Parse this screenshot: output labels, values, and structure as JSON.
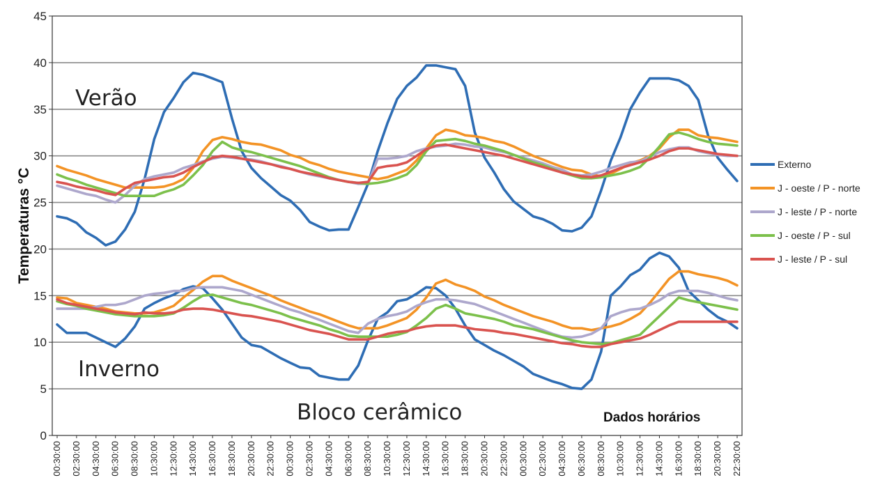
{
  "chart_data": {
    "type": "line",
    "title": "",
    "ylabel": "Temperaturas °C",
    "xlabel": "",
    "ylim": [
      0,
      45
    ],
    "yticks": [
      0,
      5,
      10,
      15,
      20,
      25,
      30,
      35,
      40,
      45
    ],
    "grid": true,
    "legend_position": "right",
    "x_ticks": [
      "00:30:00",
      "02:30:00",
      "04:30:00",
      "06:30:00",
      "08:30:00",
      "10:30:00",
      "12:30:00",
      "14:30:00",
      "16:30:00",
      "18:30:00",
      "20:30:00",
      "22:30:00",
      "00:30:00",
      "02:30:00",
      "04:30:00",
      "06:30:00",
      "08:30:00",
      "10:30:00",
      "12:30:00",
      "14:30:00",
      "16:30:00",
      "18:30:00",
      "20:30:00",
      "22:30:00",
      "00:30:00",
      "02:30:00",
      "04:30:00",
      "06:30:00",
      "08:30:00",
      "10:30:00",
      "12:30:00",
      "14:30:00",
      "16:30:00",
      "18:30:00",
      "20:30:00",
      "22:30:00"
    ],
    "annotations": {
      "verao": "Verão",
      "inverno": "Inverno",
      "bloco": "Bloco cerâmico",
      "dados": "Dados horários"
    },
    "series": [
      {
        "name": "Externo",
        "color": "#2E6DB4",
        "values": [
          23.5,
          23.3,
          22.8,
          21.8,
          21.2,
          20.4,
          20.8,
          22.1,
          24.0,
          27.5,
          31.8,
          34.7,
          36.2,
          37.9,
          38.9,
          38.7,
          38.3,
          37.9,
          34.0,
          30.5,
          28.7,
          27.6,
          26.7,
          25.8,
          25.2,
          24.2,
          22.9,
          22.4,
          22.0,
          22.1,
          22.1,
          24.5,
          27.0,
          30.5,
          33.5,
          36.1,
          37.5,
          38.4,
          39.7,
          39.7,
          39.5,
          39.3,
          37.5,
          32.5,
          29.8,
          28.2,
          26.4,
          25.1,
          24.3,
          23.5,
          23.2,
          22.7,
          22.0,
          21.9,
          22.3,
          23.5,
          26.3,
          29.5,
          32.0,
          35.0,
          36.8,
          38.3,
          38.3,
          38.3,
          38.1,
          37.5,
          36.0,
          32.2,
          29.8,
          28.5,
          27.3
        ]
      },
      {
        "name": "J - oeste / P - norte",
        "color": "#F39325",
        "values": [
          28.9,
          28.5,
          28.2,
          27.9,
          27.5,
          27.2,
          26.9,
          26.6,
          26.6,
          26.6,
          26.6,
          26.7,
          27.0,
          27.5,
          28.7,
          30.5,
          31.7,
          32.0,
          31.8,
          31.5,
          31.3,
          31.2,
          30.9,
          30.6,
          30.1,
          29.8,
          29.3,
          29.0,
          28.6,
          28.3,
          28.1,
          27.9,
          27.7,
          27.5,
          27.7,
          28.1,
          28.5,
          29.5,
          30.8,
          32.2,
          32.8,
          32.6,
          32.2,
          32.1,
          31.9,
          31.6,
          31.4,
          31.0,
          30.5,
          30.0,
          29.6,
          29.2,
          28.8,
          28.5,
          28.4,
          28.0,
          27.8,
          28.1,
          28.6,
          29.2,
          29.5,
          30.0,
          30.8,
          32.0,
          32.8,
          32.8,
          32.2,
          32.0,
          31.9,
          31.7,
          31.5
        ]
      },
      {
        "name": "J - leste / P - norte",
        "color": "#ADA7CC",
        "values": [
          26.8,
          26.5,
          26.2,
          25.9,
          25.7,
          25.3,
          25.0,
          25.8,
          26.8,
          27.5,
          27.8,
          28.0,
          28.2,
          28.7,
          29.0,
          29.4,
          29.7,
          29.9,
          29.8,
          29.7,
          29.6,
          29.4,
          29.1,
          28.9,
          28.6,
          28.3,
          28.0,
          27.8,
          27.6,
          27.4,
          27.2,
          27.0,
          27.0,
          29.7,
          29.7,
          29.8,
          30.0,
          30.5,
          30.8,
          31.0,
          31.1,
          31.3,
          31.2,
          31.0,
          30.9,
          30.6,
          30.4,
          30.1,
          29.8,
          29.5,
          29.2,
          28.8,
          28.5,
          28.0,
          27.9,
          28.0,
          28.3,
          28.7,
          29.0,
          29.3,
          29.4,
          29.9,
          30.4,
          30.7,
          30.9,
          30.9,
          30.5,
          30.3,
          30.1,
          30.0,
          30.0
        ]
      },
      {
        "name": "J - oeste / P - sul",
        "color": "#7CC04B",
        "values": [
          28.0,
          27.6,
          27.3,
          26.9,
          26.6,
          26.3,
          26.0,
          25.7,
          25.7,
          25.7,
          25.7,
          26.1,
          26.4,
          26.9,
          27.9,
          29.0,
          30.5,
          31.5,
          30.9,
          30.6,
          30.4,
          30.1,
          29.8,
          29.5,
          29.2,
          28.9,
          28.5,
          28.1,
          27.7,
          27.4,
          27.2,
          27.1,
          27.0,
          27.1,
          27.3,
          27.6,
          28.0,
          29.0,
          30.5,
          31.6,
          31.7,
          31.8,
          31.6,
          31.3,
          31.1,
          30.8,
          30.5,
          30.1,
          29.7,
          29.3,
          29.0,
          28.6,
          28.2,
          27.9,
          27.6,
          27.6,
          27.7,
          27.9,
          28.1,
          28.4,
          28.8,
          29.8,
          31.0,
          32.3,
          32.5,
          32.2,
          31.8,
          31.5,
          31.3,
          31.2,
          31.1
        ]
      },
      {
        "name": "J - leste / P - sul",
        "color": "#D9534F",
        "values": [
          27.2,
          27.0,
          26.7,
          26.5,
          26.3,
          26.0,
          25.8,
          26.5,
          27.1,
          27.3,
          27.5,
          27.7,
          27.8,
          28.2,
          28.8,
          29.3,
          29.8,
          30.0,
          29.9,
          29.7,
          29.5,
          29.3,
          29.1,
          28.8,
          28.6,
          28.3,
          28.1,
          27.9,
          27.6,
          27.4,
          27.2,
          27.1,
          27.2,
          28.7,
          28.9,
          29.0,
          29.3,
          30.0,
          30.7,
          31.1,
          31.2,
          31.0,
          30.8,
          30.6,
          30.4,
          30.2,
          30.0,
          29.7,
          29.4,
          29.1,
          28.8,
          28.5,
          28.2,
          28.0,
          27.8,
          27.7,
          27.9,
          28.3,
          28.7,
          29.0,
          29.3,
          29.6,
          30.0,
          30.5,
          30.8,
          30.8,
          30.6,
          30.4,
          30.2,
          30.1,
          30.0
        ]
      },
      {
        "name": "Externo",
        "color": "#2E6DB4",
        "values": [
          11.9,
          11.0,
          11.0,
          11.0,
          10.5,
          10.0,
          9.5,
          10.4,
          11.7,
          13.6,
          14.2,
          14.7,
          15.1,
          15.7,
          16.0,
          15.8,
          14.7,
          13.5,
          12.0,
          10.5,
          9.7,
          9.5,
          8.9,
          8.3,
          7.8,
          7.3,
          7.2,
          6.4,
          6.2,
          6.0,
          6.0,
          7.5,
          10.2,
          12.5,
          13.2,
          14.4,
          14.6,
          15.2,
          15.9,
          15.8,
          15.0,
          13.6,
          11.8,
          10.3,
          9.7,
          9.1,
          8.6,
          8.0,
          7.4,
          6.6,
          6.2,
          5.8,
          5.5,
          5.1,
          5.0,
          6.0,
          9.0,
          15.0,
          16.0,
          17.2,
          17.8,
          19.0,
          19.6,
          19.2,
          18.0,
          15.5,
          14.5,
          13.5,
          12.7,
          12.2,
          11.5
        ]
      },
      {
        "name": "J - oeste / P - norte",
        "color": "#F39325",
        "values": [
          14.8,
          14.7,
          14.2,
          14.0,
          13.8,
          13.6,
          13.3,
          13.2,
          13.1,
          13.1,
          13.2,
          13.5,
          13.9,
          14.8,
          15.6,
          16.5,
          17.1,
          17.1,
          16.6,
          16.2,
          15.8,
          15.4,
          15.0,
          14.5,
          14.1,
          13.7,
          13.3,
          13.0,
          12.6,
          12.2,
          11.8,
          11.5,
          11.5,
          11.5,
          11.8,
          12.2,
          12.6,
          13.5,
          14.8,
          16.3,
          16.7,
          16.2,
          15.9,
          15.5,
          14.9,
          14.5,
          14.0,
          13.6,
          13.2,
          12.8,
          12.5,
          12.2,
          11.8,
          11.5,
          11.5,
          11.3,
          11.5,
          11.7,
          12.0,
          12.5,
          13.1,
          14.2,
          15.5,
          16.8,
          17.6,
          17.6,
          17.3,
          17.1,
          16.9,
          16.6,
          16.1
        ]
      },
      {
        "name": "J - leste / P - norte",
        "color": "#ADA7CC",
        "values": [
          13.6,
          13.6,
          13.6,
          13.6,
          13.8,
          14.0,
          14.0,
          14.2,
          14.6,
          15.0,
          15.2,
          15.3,
          15.5,
          15.5,
          15.8,
          15.9,
          15.9,
          15.9,
          15.7,
          15.5,
          15.1,
          14.7,
          14.3,
          13.9,
          13.5,
          13.2,
          12.8,
          12.4,
          12.0,
          11.6,
          11.2,
          11.0,
          12.0,
          12.5,
          12.8,
          13.0,
          13.3,
          13.9,
          14.3,
          14.6,
          14.6,
          14.5,
          14.3,
          14.1,
          13.7,
          13.3,
          12.9,
          12.5,
          12.1,
          11.7,
          11.3,
          10.9,
          10.6,
          10.5,
          10.6,
          10.9,
          11.5,
          12.8,
          13.2,
          13.5,
          13.6,
          14.0,
          14.5,
          15.2,
          15.5,
          15.5,
          15.5,
          15.3,
          15.0,
          14.7,
          14.5
        ]
      },
      {
        "name": "J - oeste / P - sul",
        "color": "#7CC04B",
        "values": [
          14.4,
          14.1,
          13.9,
          13.6,
          13.4,
          13.2,
          13.0,
          12.9,
          12.8,
          12.8,
          12.8,
          12.9,
          13.1,
          13.7,
          14.4,
          15.0,
          15.1,
          14.8,
          14.5,
          14.2,
          14.0,
          13.7,
          13.4,
          13.1,
          12.7,
          12.4,
          12.1,
          11.8,
          11.4,
          11.1,
          10.7,
          10.6,
          10.6,
          10.6,
          10.6,
          10.8,
          11.1,
          11.8,
          12.6,
          13.6,
          14.0,
          13.6,
          13.1,
          12.9,
          12.7,
          12.5,
          12.2,
          11.8,
          11.6,
          11.4,
          11.1,
          10.8,
          10.5,
          10.2,
          10.0,
          9.9,
          9.8,
          9.9,
          10.2,
          10.5,
          10.8,
          11.8,
          12.8,
          13.8,
          14.8,
          14.5,
          14.3,
          14.1,
          13.9,
          13.7,
          13.5
        ]
      },
      {
        "name": "J - leste / P - sul",
        "color": "#D9534F",
        "values": [
          14.6,
          14.2,
          14.0,
          13.8,
          13.6,
          13.4,
          13.2,
          13.1,
          13.0,
          13.2,
          13.1,
          13.1,
          13.2,
          13.5,
          13.6,
          13.6,
          13.5,
          13.3,
          13.1,
          12.9,
          12.8,
          12.6,
          12.4,
          12.2,
          11.9,
          11.6,
          11.3,
          11.1,
          10.9,
          10.6,
          10.3,
          10.3,
          10.3,
          10.6,
          10.9,
          11.1,
          11.2,
          11.5,
          11.7,
          11.8,
          11.8,
          11.8,
          11.6,
          11.4,
          11.3,
          11.2,
          11.0,
          10.9,
          10.7,
          10.5,
          10.3,
          10.1,
          9.9,
          9.8,
          9.6,
          9.5,
          9.5,
          9.8,
          10.0,
          10.2,
          10.4,
          10.8,
          11.3,
          11.8,
          12.2,
          12.2,
          12.2,
          12.2,
          12.2,
          12.2,
          12.2
        ]
      }
    ],
    "legend": [
      {
        "name": "Externo",
        "color": "#2E6DB4"
      },
      {
        "name": "J - oeste / P - norte",
        "color": "#F39325"
      },
      {
        "name": "J - leste / P - norte",
        "color": "#ADA7CC"
      },
      {
        "name": "J - oeste / P - sul",
        "color": "#7CC04B"
      },
      {
        "name": "J - leste / P - sul",
        "color": "#D9534F"
      }
    ]
  }
}
